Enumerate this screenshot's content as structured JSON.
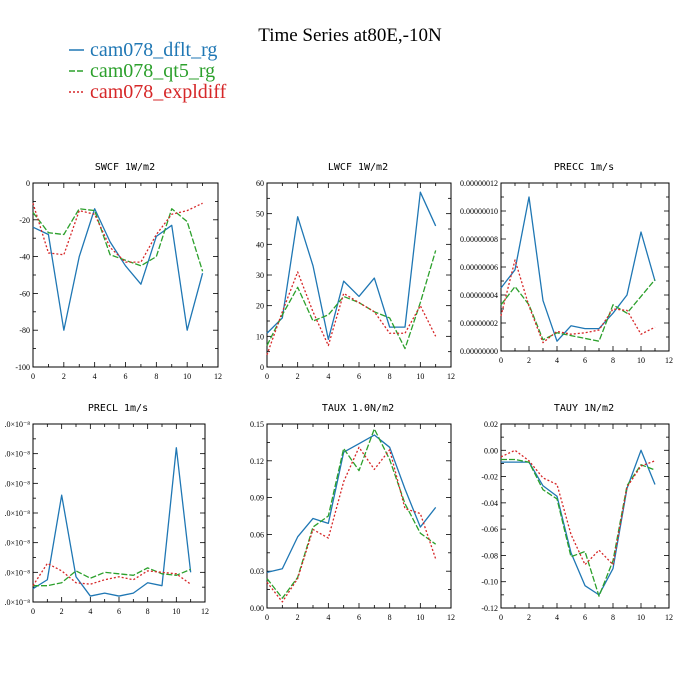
{
  "page": {
    "title": "Time Series at80E,-10N"
  },
  "legend": [
    {
      "label": "cam078_dflt_rg",
      "color": "#1f77b4",
      "dash": "solid"
    },
    {
      "label": "cam078_qt5_rg",
      "color": "#2ca02c",
      "dash": "dashed"
    },
    {
      "label": "cam078_expldiff",
      "color": "#d62728",
      "dash": "dotted"
    }
  ],
  "chart_data": [
    {
      "type": "line",
      "title": "SWCF   1W/m2",
      "x": [
        0,
        1,
        2,
        3,
        4,
        5,
        6,
        7,
        8,
        9,
        10,
        11
      ],
      "xlim": [
        0,
        12
      ],
      "xticks": [
        "0",
        "2",
        "4",
        "6",
        "8",
        "10",
        "12"
      ],
      "ylim": [
        -100,
        0
      ],
      "yticks": [
        {
          "v": 0,
          "t": "0"
        },
        {
          "v": -20,
          "t": "-20"
        },
        {
          "v": -40,
          "t": "-40"
        },
        {
          "v": -60,
          "t": "-60"
        },
        {
          "v": -80,
          "t": "-80"
        },
        {
          "v": -100,
          "t": "-100"
        }
      ],
      "series": [
        {
          "name": "cam078_dflt_rg",
          "values": [
            -24,
            -28,
            -80,
            -40,
            -14,
            -32,
            -45,
            -55,
            -29,
            -23,
            -80,
            -49
          ]
        },
        {
          "name": "cam078_qt5_rg",
          "values": [
            -16,
            -27,
            -28,
            -14,
            -15,
            -39,
            -42,
            -45,
            -40,
            -14,
            -21,
            -48
          ]
        },
        {
          "name": "cam078_expldiff",
          "values": [
            -11,
            -38,
            -39,
            -15,
            -17,
            -35,
            -43,
            -43,
            -28,
            -17,
            -15,
            -11
          ]
        }
      ]
    },
    {
      "type": "line",
      "title": "LWCF   1W/m2",
      "x": [
        0,
        1,
        2,
        3,
        4,
        5,
        6,
        7,
        8,
        9,
        10,
        11
      ],
      "xlim": [
        0,
        12
      ],
      "xticks": [
        "0",
        "2",
        "4",
        "6",
        "8",
        "10",
        "12"
      ],
      "ylim": [
        0,
        60
      ],
      "yticks": [
        {
          "v": 0,
          "t": "0"
        },
        {
          "v": 10,
          "t": "10"
        },
        {
          "v": 20,
          "t": "20"
        },
        {
          "v": 30,
          "t": "30"
        },
        {
          "v": 40,
          "t": "40"
        },
        {
          "v": 50,
          "t": "50"
        },
        {
          "v": 60,
          "t": "60"
        }
      ],
      "series": [
        {
          "name": "cam078_dflt_rg",
          "values": [
            11,
            16,
            49,
            33,
            9,
            28,
            23,
            29,
            13,
            13,
            57,
            46
          ]
        },
        {
          "name": "cam078_qt5_rg",
          "values": [
            7,
            17,
            26,
            15,
            17,
            23,
            21,
            18,
            16,
            6,
            21,
            38
          ]
        },
        {
          "name": "cam078_expldiff",
          "values": [
            4,
            18,
            31,
            18,
            7,
            24,
            21,
            18,
            11,
            11,
            20,
            10
          ]
        }
      ]
    },
    {
      "type": "line",
      "title": "PRECC   1m/s",
      "x": [
        0,
        1,
        2,
        3,
        4,
        5,
        6,
        7,
        8,
        9,
        10,
        11
      ],
      "xlim": [
        0,
        12
      ],
      "xticks": [
        "0",
        "2",
        "4",
        "6",
        "8",
        "10",
        "12"
      ],
      "ylim": [
        0,
        1.2e-07
      ],
      "yticks": [
        {
          "v": 0,
          "t": "0.00000000"
        },
        {
          "v": 2e-08,
          "t": "0.00000002"
        },
        {
          "v": 4e-08,
          "t": "0.00000004"
        },
        {
          "v": 6e-08,
          "t": "0.00000006"
        },
        {
          "v": 8e-08,
          "t": "0.00000008"
        },
        {
          "v": 1e-07,
          "t": "0.00000010"
        },
        {
          "v": 1.2e-07,
          "t": "0.00000012"
        }
      ],
      "series": [
        {
          "name": "cam078_dflt_rg",
          "values": [
            4.5e-08,
            5.8e-08,
            1.1e-07,
            3.6e-08,
            7e-09,
            1.8e-08,
            1.6e-08,
            1.6e-08,
            2.7e-08,
            4e-08,
            8.5e-08,
            5e-08
          ]
        },
        {
          "name": "cam078_qt5_rg",
          "values": [
            3.3e-08,
            4.6e-08,
            3.3e-08,
            8e-09,
            1.3e-08,
            1.1e-08,
            9e-09,
            7e-09,
            3.3e-08,
            2.7e-08,
            3.9e-08,
            5.1e-08
          ]
        },
        {
          "name": "cam078_expldiff",
          "values": [
            2.5e-08,
            6.5e-08,
            3.2e-08,
            6e-09,
            1.4e-08,
            1.2e-08,
            1.3e-08,
            1.5e-08,
            3e-08,
            2.9e-08,
            1.2e-08,
            1.7e-08
          ]
        }
      ]
    },
    {
      "type": "line",
      "title": "PRECL   1m/s",
      "x": [
        0,
        1,
        2,
        3,
        4,
        5,
        6,
        7,
        8,
        9,
        10,
        11
      ],
      "xlim": [
        0,
        12
      ],
      "xticks": [
        "0",
        "2",
        "4",
        "6",
        "8",
        "10",
        "12"
      ],
      "ylim": [
        0,
        6
      ],
      "yticks": [
        {
          "v": 0,
          "t": ".0×10⁻⁸"
        },
        {
          "v": 1,
          "t": ".0×10⁻⁸"
        },
        {
          "v": 2,
          "t": ".0×10⁻⁸"
        },
        {
          "v": 3,
          "t": ".0×10⁻⁸"
        },
        {
          "v": 4,
          "t": ".0×10⁻⁸"
        },
        {
          "v": 5,
          "t": ".0×10⁻⁸"
        },
        {
          "v": 6,
          "t": ".0×10⁻⁸"
        }
      ],
      "series": [
        {
          "name": "cam078_dflt_rg",
          "values": [
            0.45,
            0.75,
            3.6,
            0.85,
            0.2,
            0.3,
            0.2,
            0.3,
            0.65,
            0.55,
            5.2,
            1.0
          ]
        },
        {
          "name": "cam078_qt5_rg",
          "values": [
            0.55,
            0.55,
            0.65,
            1.05,
            0.8,
            1.0,
            0.95,
            0.9,
            1.15,
            0.95,
            0.9,
            1.1
          ]
        },
        {
          "name": "cam078_expldiff",
          "values": [
            0.55,
            1.3,
            1.05,
            0.65,
            0.6,
            0.75,
            0.85,
            0.75,
            1.05,
            1.0,
            0.95,
            0.6
          ]
        }
      ]
    },
    {
      "type": "line",
      "title": "TAUX   1.0N/m2",
      "x": [
        0,
        1,
        2,
        3,
        4,
        5,
        6,
        7,
        8,
        9,
        10,
        11
      ],
      "xlim": [
        0,
        12
      ],
      "xticks": [
        "0",
        "2",
        "4",
        "6",
        "8",
        "10",
        "12"
      ],
      "ylim": [
        0,
        0.15
      ],
      "yticks": [
        {
          "v": 0,
          "t": "0.00"
        },
        {
          "v": 0.03,
          "t": "0.03"
        },
        {
          "v": 0.06,
          "t": "0.06"
        },
        {
          "v": 0.09,
          "t": "0.09"
        },
        {
          "v": 0.12,
          "t": "0.12"
        },
        {
          "v": 0.15,
          "t": "0.15"
        }
      ],
      "series": [
        {
          "name": "cam078_dflt_rg",
          "values": [
            0.029,
            0.032,
            0.058,
            0.073,
            0.069,
            0.127,
            0.134,
            0.141,
            0.131,
            0.097,
            0.066,
            0.082
          ]
        },
        {
          "name": "cam078_qt5_rg",
          "values": [
            0.024,
            0.008,
            0.025,
            0.066,
            0.075,
            0.13,
            0.112,
            0.146,
            0.121,
            0.085,
            0.061,
            0.052
          ]
        },
        {
          "name": "cam078_expldiff",
          "values": [
            0.021,
            0.005,
            0.024,
            0.064,
            0.057,
            0.103,
            0.131,
            0.113,
            0.129,
            0.081,
            0.077,
            0.04
          ]
        }
      ]
    },
    {
      "type": "line",
      "title": "TAUY   1N/m2",
      "x": [
        0,
        1,
        2,
        3,
        4,
        5,
        6,
        7,
        8,
        9,
        10,
        11
      ],
      "xlim": [
        0,
        12
      ],
      "xticks": [
        "0",
        "2",
        "4",
        "6",
        "8",
        "10",
        "12"
      ],
      "ylim": [
        -0.12,
        0.02
      ],
      "yticks": [
        {
          "v": 0.02,
          "t": "0.02"
        },
        {
          "v": 0,
          "t": "0.00"
        },
        {
          "v": -0.02,
          "t": "-0.02"
        },
        {
          "v": -0.04,
          "t": "-0.04"
        },
        {
          "v": -0.06,
          "t": "-0.06"
        },
        {
          "v": -0.08,
          "t": "-0.08"
        },
        {
          "v": -0.1,
          "t": "-0.10"
        },
        {
          "v": -0.12,
          "t": "-0.12"
        }
      ],
      "series": [
        {
          "name": "cam078_dflt_rg",
          "values": [
            -0.009,
            -0.009,
            -0.009,
            -0.027,
            -0.035,
            -0.078,
            -0.103,
            -0.11,
            -0.09,
            -0.029,
            0.0,
            -0.026
          ]
        },
        {
          "name": "cam078_qt5_rg",
          "values": [
            -0.007,
            -0.007,
            -0.009,
            -0.03,
            -0.037,
            -0.081,
            -0.077,
            -0.111,
            -0.084,
            -0.027,
            -0.011,
            -0.015
          ]
        },
        {
          "name": "cam078_expldiff",
          "values": [
            -0.005,
            0.0,
            -0.008,
            -0.021,
            -0.026,
            -0.064,
            -0.087,
            -0.076,
            -0.087,
            -0.028,
            -0.012,
            -0.008
          ]
        }
      ]
    }
  ]
}
